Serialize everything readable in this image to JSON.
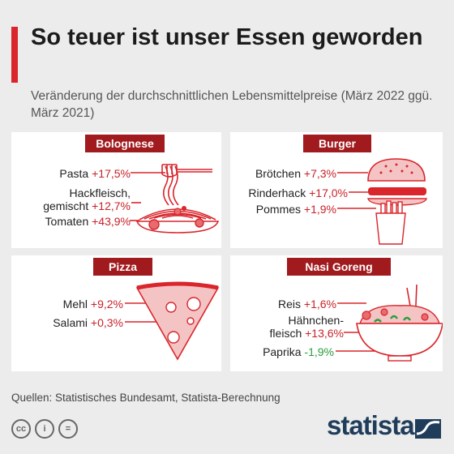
{
  "header": {
    "title": "So teuer ist unser Essen geworden",
    "subtitle": "Veränderung der durchschnittlichen Lebensmittelpreise (März 2022 ggü. März 2021)"
  },
  "colors": {
    "accent": "#d9252b",
    "dish_pill": "#a01a1e",
    "increase": "#c8222a",
    "decrease": "#2a9d3c",
    "brand": "#1f3d5b"
  },
  "panels": [
    {
      "dish": "Bolognese",
      "items": [
        {
          "name": "Pasta",
          "value": "+17,5%"
        },
        {
          "name": "Hackfleisch,",
          "name2": "gemischt",
          "value": "+12,7%"
        },
        {
          "name": "Tomaten",
          "value": "+43,9%"
        }
      ]
    },
    {
      "dish": "Burger",
      "items": [
        {
          "name": "Brötchen",
          "value": "+7,3%"
        },
        {
          "name": "Rinderhack",
          "value": "+17,0%"
        },
        {
          "name": "Pommes",
          "value": "+1,9%"
        }
      ]
    },
    {
      "dish": "Pizza",
      "items": [
        {
          "name": "Mehl",
          "value": "+9,2%"
        },
        {
          "name": "Salami",
          "value": "+0,3%"
        }
      ]
    },
    {
      "dish": "Nasi Goreng",
      "items": [
        {
          "name": "Reis",
          "value": "+1,6%"
        },
        {
          "name": "Hähnchen-",
          "name2": "fleisch",
          "value": "+13,6%"
        },
        {
          "name": "Paprika",
          "value": "-1,9%"
        }
      ]
    }
  ],
  "chart_data": {
    "type": "table",
    "title": "So teuer ist unser Essen geworden",
    "subtitle": "Veränderung der durchschnittlichen Lebensmittelpreise (März 2022 ggü. März 2021)",
    "groups": [
      {
        "name": "Bolognese",
        "categories": [
          "Pasta",
          "Hackfleisch, gemischt",
          "Tomaten"
        ],
        "values": [
          17.5,
          12.7,
          43.9
        ]
      },
      {
        "name": "Burger",
        "categories": [
          "Brötchen",
          "Rinderhack",
          "Pommes"
        ],
        "values": [
          7.3,
          17.0,
          1.9
        ]
      },
      {
        "name": "Pizza",
        "categories": [
          "Mehl",
          "Salami"
        ],
        "values": [
          9.2,
          0.3
        ]
      },
      {
        "name": "Nasi Goreng",
        "categories": [
          "Reis",
          "Hähnchenfleisch",
          "Paprika"
        ],
        "values": [
          1.6,
          13.6,
          -1.9
        ]
      }
    ],
    "unit": "%"
  },
  "footer": {
    "source": "Quellen: Statistisches Bundesamt, Statista-Berechnung",
    "cc_icons": [
      "cc",
      "i",
      "="
    ],
    "brand": "statista"
  }
}
